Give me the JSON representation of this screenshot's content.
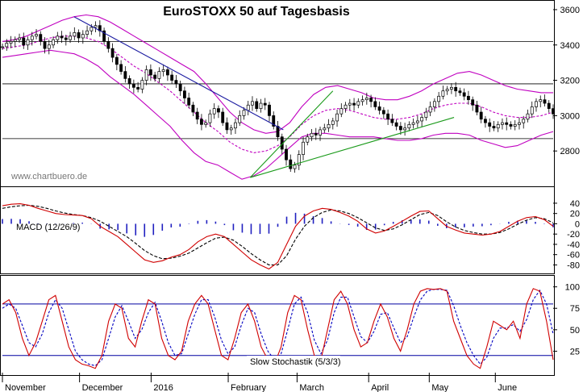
{
  "chart_data": [
    {
      "type": "candlestick",
      "title": "EuroSTOXX 50 auf Tagesbasis",
      "watermark": "www.chartbuero.de",
      "ylim": [
        2600,
        3650
      ],
      "y_ticks": [
        2800,
        3000,
        3200,
        3400,
        3600
      ],
      "horizontal_lines": [
        3420,
        3180,
        2870
      ],
      "close": [
        3390,
        3410,
        3420,
        3430,
        3440,
        3400,
        3430,
        3450,
        3460,
        3420,
        3380,
        3400,
        3430,
        3450,
        3440,
        3430,
        3450,
        3470,
        3440,
        3460,
        3480,
        3500,
        3510,
        3480,
        3420,
        3380,
        3330,
        3290,
        3250,
        3210,
        3180,
        3160,
        3150,
        3200,
        3260,
        3230,
        3210,
        3250,
        3260,
        3230,
        3200,
        3180,
        3140,
        3100,
        3060,
        3020,
        2980,
        2950,
        2960,
        3010,
        3040,
        3020,
        2960,
        2920,
        2930,
        2960,
        3000,
        3030,
        3060,
        3080,
        3040,
        3070,
        3060,
        3000,
        2940,
        2880,
        2810,
        2750,
        2700,
        2720,
        2780,
        2850,
        2880,
        2900,
        2890,
        2920,
        2930,
        2950,
        2970,
        3010,
        3040,
        3060,
        3070,
        3060,
        3080,
        3090,
        3100,
        3080,
        3050,
        3030,
        3010,
        2980,
        2960,
        2940,
        2920,
        2930,
        2950,
        2960,
        2970,
        2990,
        3020,
        3050,
        3080,
        3110,
        3140,
        3150,
        3160,
        3140,
        3130,
        3110,
        3090,
        3060,
        3020,
        2980,
        2960,
        2940,
        2930,
        2950,
        2960,
        2950,
        2940,
        2950,
        2960,
        2980,
        3010,
        3050,
        3080,
        3090,
        3070,
        3040,
        3010
      ],
      "bollinger": {
        "upper": [
          3420,
          3430,
          3450,
          3480,
          3510,
          3540,
          3560,
          3570,
          3560,
          3530,
          3490,
          3450,
          3410,
          3370,
          3330,
          3290,
          3250,
          3180,
          3100,
          3020,
          2960,
          2920,
          2900,
          2910,
          2960,
          3050,
          3120,
          3160,
          3170,
          3150,
          3130,
          3100,
          3090,
          3090,
          3110,
          3140,
          3180,
          3210,
          3240,
          3250,
          3230,
          3200,
          3170,
          3150,
          3140,
          3130,
          3130
        ],
        "lower": [
          3330,
          3340,
          3350,
          3360,
          3370,
          3360,
          3350,
          3320,
          3280,
          3220,
          3170,
          3120,
          3060,
          3000,
          2940,
          2860,
          2790,
          2740,
          2720,
          2680,
          2640,
          2660,
          2700,
          2760,
          2820,
          2880,
          2900,
          2900,
          2890,
          2880,
          2880,
          2880,
          2870,
          2860,
          2860,
          2870,
          2890,
          2900,
          2900,
          2890,
          2860,
          2840,
          2820,
          2830,
          2860,
          2890,
          2910
        ],
        "middle": [
          3380,
          3390,
          3400,
          3420,
          3440,
          3450,
          3450,
          3440,
          3420,
          3380,
          3330,
          3280,
          3240,
          3190,
          3140,
          3080,
          3020,
          2960,
          2910,
          2850,
          2810,
          2790,
          2800,
          2830,
          2880,
          2950,
          3000,
          3030,
          3040,
          3030,
          3010,
          2990,
          2980,
          2980,
          2990,
          3010,
          3040,
          3060,
          3070,
          3070,
          3050,
          3020,
          3000,
          2990,
          2990,
          3000,
          3020
        ]
      },
      "trendlines": [
        {
          "color": "#1a1aa0",
          "from": [
            0.13,
            3560
          ],
          "to": [
            0.51,
            2920
          ]
        },
        {
          "color": "#1a9a1a",
          "from": [
            0.45,
            2650
          ],
          "to": [
            0.6,
            3140
          ]
        },
        {
          "color": "#1a9a1a",
          "from": [
            0.45,
            2650
          ],
          "to": [
            0.82,
            2990
          ]
        }
      ]
    },
    {
      "type": "line",
      "label": "MACD (12/26/9)",
      "ylim": [
        -95,
        65
      ],
      "y_ticks": [
        40,
        20,
        0,
        -20,
        -40,
        -60,
        -80
      ],
      "macd": [
        35,
        38,
        39,
        36,
        30,
        25,
        20,
        18,
        17,
        16,
        10,
        -5,
        -15,
        -25,
        -40,
        -55,
        -70,
        -75,
        -72,
        -65,
        -60,
        -50,
        -35,
        -25,
        -20,
        -25,
        -40,
        -55,
        -70,
        -80,
        -88,
        -75,
        -40,
        -5,
        15,
        25,
        30,
        28,
        22,
        15,
        5,
        -10,
        -18,
        -14,
        -5,
        5,
        15,
        24,
        25,
        10,
        -5,
        -12,
        -18,
        -20,
        -22,
        -20,
        -15,
        -5,
        5,
        12,
        14,
        8,
        -5
      ],
      "signal": [
        30,
        33,
        35,
        36,
        34,
        30,
        25,
        21,
        18,
        16,
        12,
        5,
        -5,
        -15,
        -25,
        -38,
        -52,
        -62,
        -68,
        -67,
        -63,
        -57,
        -47,
        -37,
        -28,
        -26,
        -32,
        -44,
        -58,
        -70,
        -80,
        -80,
        -62,
        -30,
        -5,
        12,
        22,
        27,
        25,
        20,
        12,
        2,
        -8,
        -13,
        -10,
        -2,
        8,
        18,
        22,
        16,
        4,
        -6,
        -13,
        -17,
        -20,
        -20,
        -17,
        -10,
        -1,
        7,
        12,
        10,
        2
      ]
    },
    {
      "type": "line",
      "label": "Slow Stochastik (5/3/3)",
      "ylim": [
        0,
        110
      ],
      "y_ticks": [
        100,
        75,
        50,
        25
      ],
      "levels": [
        80,
        20
      ],
      "k": [
        80,
        85,
        70,
        40,
        20,
        35,
        60,
        85,
        90,
        60,
        30,
        15,
        10,
        8,
        5,
        20,
        60,
        80,
        75,
        40,
        30,
        60,
        85,
        80,
        40,
        20,
        15,
        25,
        60,
        80,
        90,
        80,
        50,
        20,
        15,
        40,
        70,
        80,
        60,
        30,
        15,
        10,
        30,
        70,
        90,
        85,
        50,
        20,
        15,
        50,
        85,
        95,
        80,
        50,
        30,
        35,
        60,
        80,
        65,
        40,
        25,
        50,
        80,
        95,
        98,
        97,
        98,
        95,
        60,
        40,
        20,
        10,
        5,
        30,
        60,
        55,
        50,
        60,
        40,
        80,
        98,
        95,
        60,
        15
      ],
      "d": [
        75,
        80,
        75,
        55,
        35,
        30,
        45,
        70,
        85,
        75,
        50,
        25,
        15,
        10,
        8,
        15,
        40,
        65,
        78,
        60,
        40,
        50,
        70,
        82,
        60,
        35,
        20,
        22,
        45,
        68,
        85,
        85,
        65,
        38,
        22,
        30,
        55,
        75,
        70,
        45,
        25,
        15,
        22,
        50,
        80,
        88,
        70,
        38,
        22,
        38,
        70,
        88,
        88,
        65,
        42,
        35,
        48,
        68,
        70,
        52,
        35,
        42,
        65,
        85,
        95,
        97,
        97,
        96,
        78,
        55,
        35,
        20,
        10,
        18,
        40,
        52,
        52,
        56,
        48,
        62,
        85,
        96,
        80,
        45
      ]
    }
  ],
  "x_labels": [
    "November",
    "December",
    "2016",
    "February",
    "March",
    "April",
    "May",
    "June"
  ],
  "colors": {
    "bollinger": "#c000c0",
    "macd_line": "#d00000",
    "signal_line": "#000000",
    "histogram": "#2020c0",
    "stoch_k": "#d00000",
    "stoch_d": "#0000c0",
    "level_line": "#0000a0",
    "candle_up": "#ffffff",
    "candle_down": "#000000"
  }
}
